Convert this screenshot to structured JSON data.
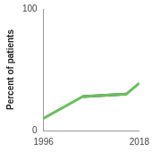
{
  "chart_data": {
    "type": "line",
    "y_label": "Percent of patients",
    "x": [
      1996,
      2005,
      2015,
      2018
    ],
    "series": [
      {
        "color": "#6abf5e",
        "values": [
          10,
          28,
          30,
          39
        ]
      },
      {
        "color": "#3d3d3d",
        "values": [
          null,
          28,
          30,
          null
        ]
      }
    ],
    "xlim": [
      1996,
      2018
    ],
    "xticks": [
      1996,
      2018
    ],
    "ylim": [
      0,
      100
    ],
    "yticks": [
      0,
      100
    ],
    "grid": false
  }
}
